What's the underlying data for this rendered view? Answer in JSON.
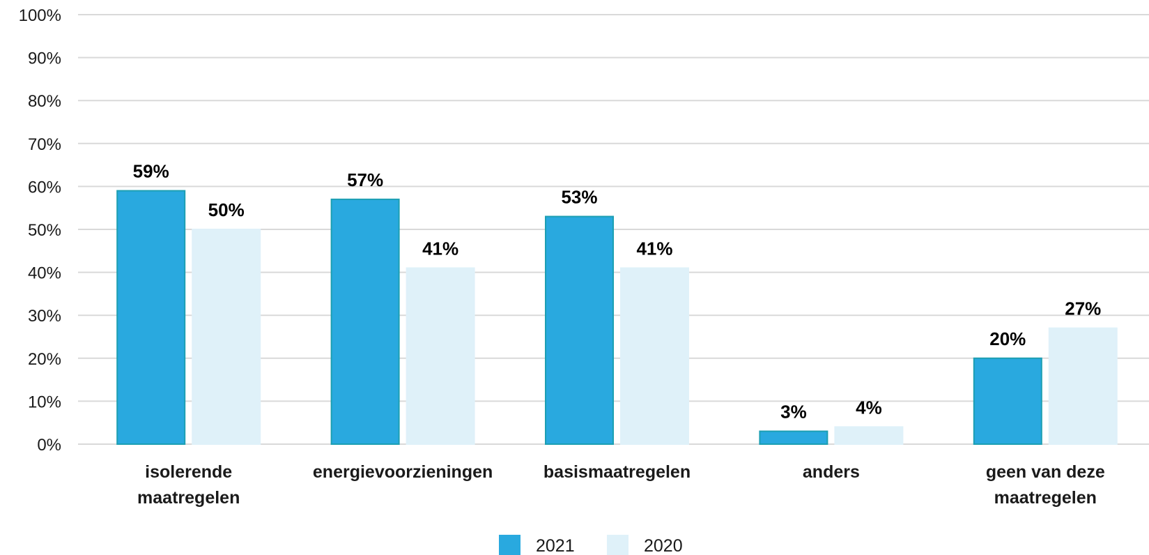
{
  "chart_data": {
    "type": "bar",
    "categories": [
      [
        "isolerende",
        "maatregelen"
      ],
      [
        "energievoorzieningen"
      ],
      [
        "basismaatregelen"
      ],
      [
        "anders"
      ],
      [
        "geen van deze",
        "maatregelen"
      ]
    ],
    "series": [
      {
        "name": "2021",
        "values": [
          59,
          57,
          53,
          3,
          20
        ],
        "labels": [
          "59%",
          "57%",
          "53%",
          "3%",
          "20%"
        ],
        "color": "#29a9df",
        "stroke": "#1c9fb3"
      },
      {
        "name": "2020",
        "values": [
          50,
          41,
          41,
          4,
          27
        ],
        "labels": [
          "50%",
          "41%",
          "41%",
          "4%",
          "27%"
        ],
        "color": "#dff1f9",
        "stroke": "#dff1f9"
      }
    ],
    "yticks": [
      "0%",
      "10%",
      "20%",
      "30%",
      "40%",
      "50%",
      "60%",
      "70%",
      "80%",
      "90%",
      "100%"
    ],
    "ylim": [
      0,
      100
    ],
    "grid": true,
    "legend": "bottom-center",
    "gridColor": "#d9d9d9"
  }
}
